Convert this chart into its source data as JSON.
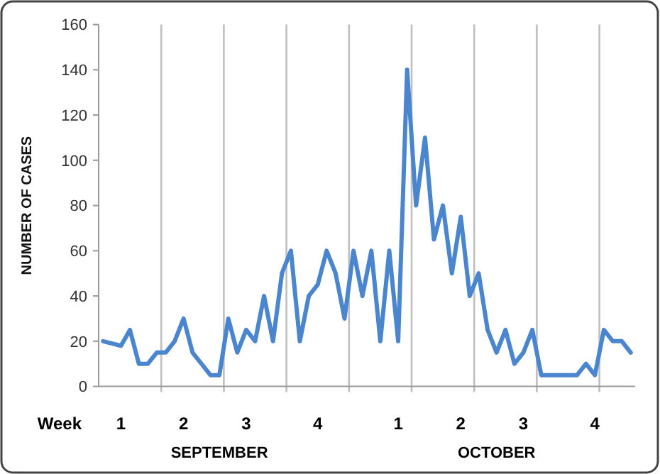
{
  "chart_data": {
    "type": "line",
    "ylabel": "NUMBER OF CASES",
    "categories": [
      null,
      null,
      "1",
      null,
      null,
      null,
      null,
      null,
      null,
      "2",
      null,
      null,
      null,
      null,
      null,
      null,
      "3",
      null,
      null,
      null,
      null,
      null,
      null,
      null,
      "4",
      null,
      null,
      null,
      null,
      null,
      null,
      null,
      null,
      "1",
      null,
      null,
      null,
      null,
      null,
      null,
      "2",
      null,
      null,
      null,
      null,
      null,
      null,
      "3",
      null,
      null,
      null,
      null,
      null,
      null,
      null,
      "4",
      null,
      null,
      null,
      null
    ],
    "series": [
      {
        "color": "#4a86cf",
        "values": [
          20,
          19,
          18,
          25,
          10,
          10,
          15,
          15,
          20,
          30,
          15,
          10,
          5,
          5,
          30,
          15,
          25,
          20,
          40,
          20,
          50,
          60,
          20,
          40,
          45,
          60,
          50,
          30,
          60,
          40,
          60,
          20,
          60,
          20,
          140,
          80,
          110,
          65,
          80,
          50,
          75,
          40,
          50,
          25,
          15,
          25,
          10,
          15,
          25,
          5,
          5,
          5,
          5,
          5,
          10,
          5,
          25,
          20,
          20,
          15
        ]
      }
    ],
    "ylim": [
      0,
      160
    ],
    "yticks": [
      0,
      20,
      40,
      60,
      80,
      100,
      120,
      140,
      160
    ],
    "grid": "x",
    "marker": "none",
    "line_style": "solid",
    "annotations": [
      "Week",
      "SEPTEMBER",
      "OCTOBER"
    ]
  }
}
